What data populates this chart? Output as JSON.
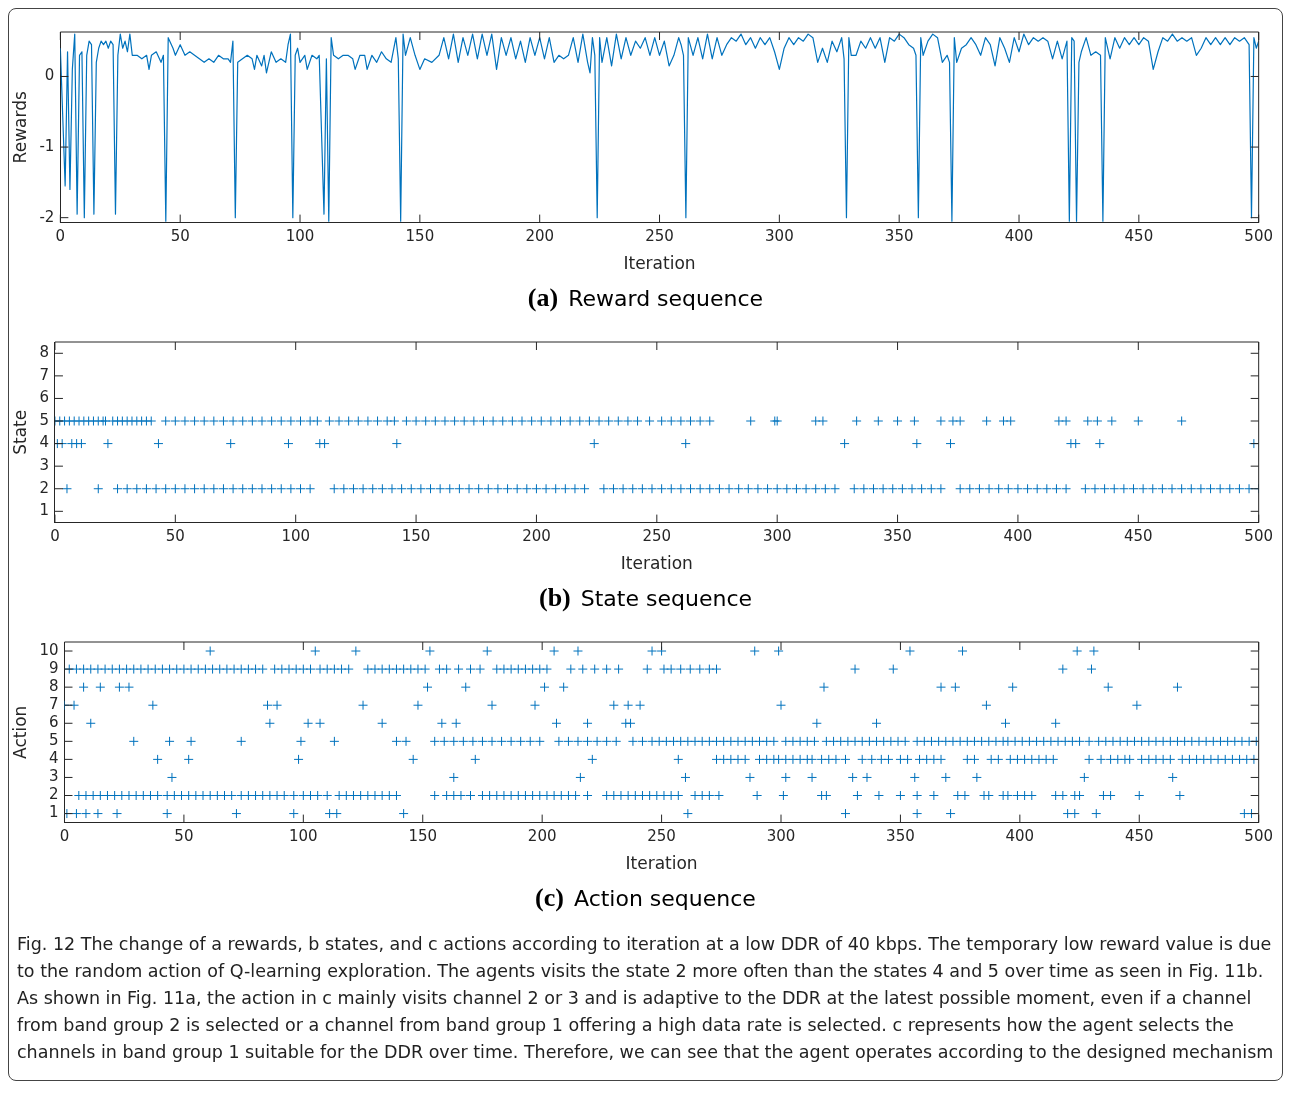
{
  "chart_data": [
    {
      "type": "line",
      "title": "(a) Reward sequence",
      "xlabel": "Iteration",
      "ylabel": "Rewards",
      "xlim": [
        0,
        500
      ],
      "xticks": [
        0,
        50,
        100,
        150,
        200,
        250,
        300,
        350,
        400,
        450,
        500
      ],
      "ylim": [
        -2.07,
        0.63
      ],
      "yticks": [
        -2,
        -1,
        0
      ],
      "grid": false,
      "legend": false,
      "series": [
        {
          "color": "#0072bd",
          "x": [
            0,
            2,
            3,
            4,
            5,
            6,
            7,
            8,
            9,
            10,
            11,
            12,
            13,
            14,
            15,
            16,
            17,
            18,
            19,
            20,
            21,
            22,
            23,
            24,
            25,
            26,
            27,
            28,
            29,
            30,
            32,
            34,
            36,
            37,
            38,
            40,
            42,
            43,
            44,
            45,
            47,
            48,
            50,
            52,
            54,
            56,
            58,
            60,
            62,
            64,
            66,
            68,
            70,
            71,
            72,
            73,
            74,
            76,
            78,
            80,
            81,
            82,
            84,
            85,
            86,
            88,
            90,
            92,
            94,
            95,
            96,
            97,
            98,
            99,
            100,
            102,
            103,
            105,
            107,
            108,
            110,
            111,
            112,
            113,
            114,
            116,
            118,
            120,
            122,
            123,
            125,
            127,
            128,
            130,
            132,
            134,
            136,
            138,
            140,
            141,
            142,
            143,
            144,
            146,
            148,
            150,
            152,
            155,
            158,
            160,
            162,
            164,
            166,
            168,
            170,
            172,
            174,
            176,
            178,
            180,
            182,
            184,
            186,
            188,
            190,
            192,
            194,
            196,
            198,
            200,
            202,
            204,
            206,
            208,
            210,
            212,
            214,
            216,
            218,
            220,
            221,
            222,
            223,
            224,
            225,
            226,
            228,
            230,
            232,
            234,
            236,
            238,
            240,
            242,
            244,
            246,
            248,
            250,
            252,
            254,
            256,
            258,
            259,
            260,
            261,
            262,
            264,
            266,
            268,
            270,
            272,
            274,
            276,
            278,
            280,
            282,
            284,
            286,
            288,
            290,
            292,
            294,
            296,
            298,
            300,
            302,
            304,
            306,
            308,
            310,
            312,
            314,
            316,
            318,
            320,
            322,
            324,
            326,
            327,
            328,
            329,
            330,
            332,
            334,
            336,
            338,
            340,
            342,
            344,
            346,
            348,
            350,
            352,
            354,
            356,
            357,
            358,
            359,
            360,
            362,
            364,
            366,
            368,
            370,
            371,
            372,
            373,
            374,
            376,
            378,
            380,
            382,
            384,
            386,
            388,
            390,
            392,
            394,
            396,
            398,
            400,
            402,
            404,
            406,
            408,
            410,
            412,
            414,
            416,
            418,
            420,
            421,
            422,
            423,
            424,
            425,
            426,
            428,
            430,
            432,
            434,
            435,
            436,
            438,
            440,
            442,
            444,
            446,
            448,
            450,
            452,
            454,
            456,
            458,
            460,
            462,
            464,
            466,
            468,
            470,
            472,
            474,
            476,
            478,
            480,
            482,
            484,
            486,
            488,
            490,
            492,
            494,
            496,
            497,
            498,
            499,
            500
          ],
          "values": [
            0.4,
            -1.55,
            0.35,
            -1.6,
            0.1,
            0.6,
            -1.95,
            0.3,
            0.35,
            -2,
            0.3,
            0.5,
            0.45,
            -1.95,
            0.2,
            0.4,
            0.5,
            0.45,
            0.5,
            0.4,
            0.5,
            0.45,
            -1.95,
            0.3,
            0.6,
            0.4,
            0.5,
            0.35,
            0.6,
            0.3,
            0.3,
            0.25,
            0.3,
            0.1,
            0.3,
            0.35,
            0.2,
            0.3,
            -2.05,
            0.55,
            0.4,
            0.3,
            0.45,
            0.3,
            0.35,
            0.3,
            0.25,
            0.2,
            0.25,
            0.2,
            0.3,
            0.25,
            0.25,
            0.2,
            0.5,
            -2,
            0.2,
            0.25,
            0.3,
            0.25,
            0.1,
            0.3,
            0.15,
            0.3,
            0.05,
            0.35,
            0.2,
            0.25,
            0.2,
            0.45,
            0.6,
            -2,
            0.3,
            0.4,
            0.2,
            0.3,
            0.1,
            0.3,
            0.25,
            0.3,
            -1.95,
            0.25,
            -2.05,
            0.55,
            0.3,
            0.25,
            0.3,
            0.3,
            0.25,
            0.1,
            0.3,
            0.3,
            0.1,
            0.3,
            0.2,
            0.35,
            0.25,
            0.2,
            0.55,
            0.25,
            -2.05,
            0.6,
            0.3,
            0.55,
            0.3,
            0.1,
            0.25,
            0.2,
            0.3,
            0.55,
            0.25,
            0.6,
            0.2,
            0.55,
            0.3,
            0.6,
            0.25,
            0.6,
            0.3,
            0.6,
            0.1,
            0.55,
            0.3,
            0.55,
            0.25,
            0.5,
            0.2,
            0.55,
            0.3,
            0.55,
            0.25,
            0.55,
            0.2,
            0.3,
            0.25,
            0.3,
            0.55,
            0.2,
            0.6,
            0.2,
            0.05,
            0.55,
            0.3,
            -2,
            0.55,
            0.2,
            0.55,
            0.15,
            0.6,
            0.25,
            0.55,
            0.3,
            0.5,
            0.4,
            0.55,
            0.3,
            0.55,
            0.3,
            0.5,
            0.15,
            0.3,
            0.55,
            0.45,
            0.3,
            -2,
            0.55,
            0.3,
            0.55,
            0.25,
            0.6,
            0.25,
            0.55,
            0.3,
            0.45,
            0.55,
            0.5,
            0.6,
            0.45,
            0.55,
            0.4,
            0.55,
            0.45,
            0.55,
            0.35,
            0.1,
            0.4,
            0.55,
            0.45,
            0.55,
            0.5,
            0.6,
            0.55,
            0.2,
            0.4,
            0.2,
            0.5,
            0.35,
            0.55,
            0.25,
            -2,
            0.55,
            0.3,
            0.3,
            0.5,
            0.4,
            0.55,
            0.4,
            0.55,
            0.2,
            0.55,
            0.5,
            0.6,
            0.55,
            0.45,
            0.4,
            0.3,
            -2,
            0.55,
            0.3,
            0.5,
            0.6,
            0.55,
            0.2,
            0.3,
            0.2,
            -2.05,
            0.55,
            0.2,
            0.4,
            0.45,
            0.55,
            0.45,
            0.3,
            0.55,
            0.45,
            0.15,
            0.55,
            0.4,
            0.2,
            0.55,
            0.35,
            0.6,
            0.45,
            0.55,
            0.5,
            0.55,
            0.5,
            0.25,
            0.5,
            0.25,
            0.5,
            -2.05,
            0.55,
            0.5,
            -2.05,
            0.2,
            0.35,
            0.55,
            0.3,
            0.35,
            0.3,
            -2.05,
            0.55,
            0.25,
            0.55,
            0.4,
            0.55,
            0.45,
            0.55,
            0.45,
            0.55,
            0.5,
            0.1,
            0.35,
            0.55,
            0.5,
            0.6,
            0.5,
            0.55,
            0.5,
            0.55,
            0.3,
            0.4,
            0.55,
            0.45,
            0.55,
            0.45,
            0.55,
            0.45,
            0.55,
            0.5,
            0.55,
            0.45,
            -2,
            0.55,
            0.4,
            0.5
          ]
        }
      ]
    },
    {
      "type": "scatter",
      "title": "(b) State sequence",
      "xlabel": "Iteration",
      "ylabel": "State",
      "xlim": [
        0,
        500
      ],
      "xticks": [
        0,
        50,
        100,
        150,
        200,
        250,
        300,
        350,
        400,
        450,
        500
      ],
      "ylim": [
        0.5,
        8.5
      ],
      "yticks": [
        1,
        2,
        3,
        4,
        5,
        6,
        7,
        8
      ],
      "grid": false,
      "legend": false,
      "marker": "cross",
      "series": [
        {
          "color": "#0072bd",
          "x": [
            1,
            3,
            7,
            9,
            11,
            22,
            43,
            73,
            97,
            110,
            112,
            142,
            224,
            262,
            328,
            358,
            372,
            422,
            424,
            434,
            498
          ],
          "values": [
            4,
            4,
            4,
            4,
            4,
            4,
            4,
            4,
            4,
            4,
            4,
            4,
            4,
            4,
            4,
            4,
            4,
            4,
            4,
            4,
            4
          ]
        },
        {
          "color": "#0072bd",
          "x": [
            0,
            2,
            4,
            6,
            8,
            10,
            12,
            14,
            16,
            18,
            20,
            21,
            24,
            26,
            28,
            30,
            32,
            34,
            36,
            38,
            40,
            46,
            50,
            54,
            58,
            62,
            66,
            70,
            74,
            78,
            82,
            86,
            90,
            94,
            98,
            102,
            106,
            109,
            114,
            118,
            122,
            126,
            130,
            134,
            138,
            141,
            146,
            150,
            154,
            158,
            162,
            166,
            170,
            174,
            178,
            182,
            186,
            190,
            194,
            198,
            202,
            206,
            210,
            214,
            218,
            222,
            226,
            230,
            234,
            238,
            242,
            247,
            252,
            256,
            260,
            264,
            268,
            272,
            289,
            299,
            300,
            316,
            319,
            333,
            342,
            350,
            357,
            368,
            373,
            376,
            387,
            394,
            397,
            417,
            420,
            429,
            433,
            439,
            450,
            468
          ],
          "values": [
            5,
            5,
            5,
            5,
            5,
            5,
            5,
            5,
            5,
            5,
            5,
            5,
            5,
            5,
            5,
            5,
            5,
            5,
            5,
            5,
            5,
            5,
            5,
            5,
            5,
            5,
            5,
            5,
            5,
            5,
            5,
            5,
            5,
            5,
            5,
            5,
            5,
            5,
            5,
            5,
            5,
            5,
            5,
            5,
            5,
            5,
            5,
            5,
            5,
            5,
            5,
            5,
            5,
            5,
            5,
            5,
            5,
            5,
            5,
            5,
            5,
            5,
            5,
            5,
            5,
            5,
            5,
            5,
            5,
            5,
            5,
            5,
            5,
            5,
            5,
            5,
            5,
            5,
            5,
            5,
            5,
            5,
            5,
            5,
            5,
            5,
            5,
            5,
            5,
            5,
            5,
            5,
            5,
            5,
            5,
            5,
            5,
            5,
            5,
            5
          ]
        },
        {
          "color": "#0072bd",
          "x": [
            5,
            18,
            26,
            30,
            34,
            38,
            42,
            46,
            50,
            54,
            58,
            62,
            66,
            70,
            74,
            78,
            82,
            86,
            90,
            94,
            98,
            102,
            106,
            116,
            120,
            124,
            128,
            132,
            136,
            140,
            144,
            148,
            152,
            156,
            160,
            164,
            168,
            172,
            176,
            180,
            184,
            188,
            192,
            196,
            200,
            204,
            208,
            212,
            216,
            220,
            228,
            232,
            236,
            240,
            244,
            248,
            252,
            256,
            260,
            264,
            268,
            272,
            276,
            280,
            284,
            288,
            292,
            296,
            300,
            304,
            308,
            312,
            316,
            320,
            324,
            332,
            336,
            340,
            344,
            348,
            352,
            356,
            360,
            364,
            368,
            376,
            380,
            384,
            388,
            392,
            396,
            400,
            404,
            408,
            412,
            416,
            420,
            428,
            432,
            436,
            440,
            444,
            448,
            452,
            456,
            460,
            464,
            468,
            472,
            476,
            480,
            484,
            488,
            492,
            496,
            500
          ],
          "values": [
            2,
            2,
            2,
            2,
            2,
            2,
            2,
            2,
            2,
            2,
            2,
            2,
            2,
            2,
            2,
            2,
            2,
            2,
            2,
            2,
            2,
            2,
            2,
            2,
            2,
            2,
            2,
            2,
            2,
            2,
            2,
            2,
            2,
            2,
            2,
            2,
            2,
            2,
            2,
            2,
            2,
            2,
            2,
            2,
            2,
            2,
            2,
            2,
            2,
            2,
            2,
            2,
            2,
            2,
            2,
            2,
            2,
            2,
            2,
            2,
            2,
            2,
            2,
            2,
            2,
            2,
            2,
            2,
            2,
            2,
            2,
            2,
            2,
            2,
            2,
            2,
            2,
            2,
            2,
            2,
            2,
            2,
            2,
            2,
            2,
            2,
            2,
            2,
            2,
            2,
            2,
            2,
            2,
            2,
            2,
            2,
            2,
            2,
            2,
            2,
            2,
            2,
            2,
            2,
            2,
            2,
            2,
            2,
            2,
            2,
            2,
            2,
            2,
            2,
            2,
            2
          ]
        }
      ]
    },
    {
      "type": "scatter",
      "title": "(c) Action sequence",
      "xlabel": "Iteration",
      "ylabel": "Action",
      "xlim": [
        0,
        500
      ],
      "xticks": [
        0,
        50,
        100,
        150,
        200,
        250,
        300,
        350,
        400,
        450,
        500
      ],
      "ylim": [
        0.5,
        10.5
      ],
      "yticks": [
        1,
        2,
        3,
        4,
        5,
        6,
        7,
        8,
        9,
        10
      ],
      "grid": false,
      "legend": false,
      "marker": "cross",
      "annotations": [
        "Fig. 12 The change of a rewards, b states, and c actions according to iteration at a low DDR of 40 kbps. The temporary low reward value is due to the random action of Q-learning exploration. The agents visits the state 2 more often than the states 4 and 5 over time as seen in Fig. 11b. As shown in Fig. 11a, the action in c mainly visits channel 2 or 3 and is adaptive to the DDR at the latest possible moment, even if a channel from band group 2 is selected or a channel from band group 1 offering a high data rate is selected. c represents how the agent selects the channels in band group 1 suitable for the DDR over time. Therefore, we can see that the agent operates according to the designed mechanism"
      ],
      "series": [
        {
          "color": "#0072bd",
          "x": [
            61,
            105,
            122,
            153,
            177,
            205,
            215,
            246,
            250,
            289,
            299,
            354,
            376,
            424,
            431
          ],
          "values": [
            10,
            10,
            10,
            10,
            10,
            10,
            10,
            10,
            10,
            10,
            10,
            10,
            10,
            10,
            10
          ]
        },
        {
          "color": "#0072bd",
          "x": [
            2,
            5,
            8,
            11,
            14,
            17,
            20,
            23,
            26,
            29,
            32,
            35,
            38,
            41,
            44,
            47,
            50,
            53,
            56,
            59,
            62,
            65,
            68,
            71,
            74,
            77,
            80,
            83,
            88,
            91,
            94,
            97,
            100,
            103,
            107,
            110,
            113,
            116,
            119,
            127,
            130,
            133,
            136,
            139,
            142,
            145,
            148,
            151,
            157,
            160,
            165,
            170,
            174,
            181,
            184,
            187,
            190,
            193,
            196,
            199,
            202,
            212,
            217,
            222,
            227,
            232,
            244,
            251,
            254,
            258,
            262,
            266,
            270,
            273,
            331,
            347,
            418,
            430
          ],
          "values": [
            9,
            9,
            9,
            9,
            9,
            9,
            9,
            9,
            9,
            9,
            9,
            9,
            9,
            9,
            9,
            9,
            9,
            9,
            9,
            9,
            9,
            9,
            9,
            9,
            9,
            9,
            9,
            9,
            9,
            9,
            9,
            9,
            9,
            9,
            9,
            9,
            9,
            9,
            9,
            9,
            9,
            9,
            9,
            9,
            9,
            9,
            9,
            9,
            9,
            9,
            9,
            9,
            9,
            9,
            9,
            9,
            9,
            9,
            9,
            9,
            9,
            9,
            9,
            9,
            9,
            9,
            9,
            9,
            9,
            9,
            9,
            9,
            9,
            9,
            9,
            9,
            9,
            9
          ]
        },
        {
          "color": "#0072bd",
          "x": [
            8,
            15,
            23,
            27,
            152,
            168,
            201,
            209,
            318,
            367,
            373,
            397,
            437,
            466
          ],
          "values": [
            8,
            8,
            8,
            8,
            8,
            8,
            8,
            8,
            8,
            8,
            8,
            8,
            8,
            8
          ]
        },
        {
          "color": "#0072bd",
          "x": [
            0,
            4,
            37,
            85,
            89,
            125,
            148,
            179,
            197,
            230,
            236,
            241,
            300,
            386,
            449
          ],
          "values": [
            7,
            7,
            7,
            7,
            7,
            7,
            7,
            7,
            7,
            7,
            7,
            7,
            7,
            7,
            7
          ]
        },
        {
          "color": "#0072bd",
          "x": [
            11,
            86,
            102,
            107,
            133,
            158,
            164,
            206,
            219,
            235,
            237,
            315,
            340,
            394,
            415
          ],
          "values": [
            6,
            6,
            6,
            6,
            6,
            6,
            6,
            6,
            6,
            6,
            6,
            6,
            6,
            6,
            6
          ]
        },
        {
          "color": "#0072bd",
          "x": [
            29,
            44,
            53,
            74,
            99,
            113,
            139,
            143,
            155,
            159,
            163,
            167,
            171,
            175,
            179,
            183,
            187,
            191,
            195,
            199,
            207,
            211,
            215,
            219,
            223,
            227,
            231,
            238,
            242,
            246,
            249,
            252,
            255,
            258,
            261,
            264,
            267,
            270,
            273,
            276,
            279,
            282,
            285,
            288,
            291,
            294,
            297,
            302,
            305,
            308,
            311,
            314,
            319,
            322,
            325,
            328,
            331,
            334,
            337,
            340,
            343,
            346,
            349,
            352,
            357,
            360,
            363,
            366,
            369,
            372,
            375,
            378,
            381,
            384,
            387,
            390,
            393,
            395,
            398,
            401,
            404,
            407,
            410,
            413,
            416,
            419,
            422,
            425,
            429,
            433,
            436,
            439,
            442,
            445,
            448,
            451,
            454,
            457,
            460,
            463,
            466,
            469,
            472,
            475,
            478,
            481,
            484,
            487,
            490,
            493,
            496,
            499
          ],
          "values": [
            5,
            5,
            5,
            5,
            5,
            5,
            5,
            5,
            5,
            5,
            5,
            5,
            5,
            5,
            5,
            5,
            5,
            5,
            5,
            5,
            5,
            5,
            5,
            5,
            5,
            5,
            5,
            5,
            5,
            5,
            5,
            5,
            5,
            5,
            5,
            5,
            5,
            5,
            5,
            5,
            5,
            5,
            5,
            5,
            5,
            5,
            5,
            5,
            5,
            5,
            5,
            5,
            5,
            5,
            5,
            5,
            5,
            5,
            5,
            5,
            5,
            5,
            5,
            5,
            5,
            5,
            5,
            5,
            5,
            5,
            5,
            5,
            5,
            5,
            5,
            5,
            5,
            5,
            5,
            5,
            5,
            5,
            5,
            5,
            5,
            5,
            5,
            5,
            5,
            5,
            5,
            5,
            5,
            5,
            5,
            5,
            5,
            5,
            5,
            5,
            5,
            5,
            5,
            5,
            5,
            5,
            5,
            5,
            5,
            5,
            5,
            5
          ]
        },
        {
          "color": "#0072bd",
          "x": [
            39,
            52,
            98,
            146,
            172,
            221,
            257,
            273,
            276,
            279,
            282,
            285,
            291,
            294,
            297,
            299,
            302,
            305,
            308,
            311,
            313,
            317,
            320,
            323,
            327,
            334,
            338,
            342,
            345,
            350,
            353,
            358,
            361,
            364,
            367,
            378,
            381,
            388,
            391,
            396,
            399,
            402,
            405,
            408,
            411,
            414,
            429,
            434,
            438,
            441,
            444,
            446,
            451,
            454,
            457,
            460,
            463,
            468,
            471,
            474,
            477,
            480,
            483,
            486,
            489,
            492,
            495,
            498
          ],
          "values": [
            4,
            4,
            4,
            4,
            4,
            4,
            4,
            4,
            4,
            4,
            4,
            4,
            4,
            4,
            4,
            4,
            4,
            4,
            4,
            4,
            4,
            4,
            4,
            4,
            4,
            4,
            4,
            4,
            4,
            4,
            4,
            4,
            4,
            4,
            4,
            4,
            4,
            4,
            4,
            4,
            4,
            4,
            4,
            4,
            4,
            4,
            4,
            4,
            4,
            4,
            4,
            4,
            4,
            4,
            4,
            4,
            4,
            4,
            4,
            4,
            4,
            4,
            4,
            4,
            4,
            4,
            4,
            4
          ]
        },
        {
          "color": "#0072bd",
          "x": [
            45,
            163,
            216,
            260,
            287,
            302,
            313,
            330,
            336,
            356,
            369,
            382,
            427,
            464
          ],
          "values": [
            3,
            3,
            3,
            3,
            3,
            3,
            3,
            3,
            3,
            3,
            3,
            3,
            3,
            3
          ]
        },
        {
          "color": "#0072bd",
          "x": [
            6,
            9,
            12,
            15,
            18,
            21,
            24,
            27,
            30,
            33,
            36,
            39,
            43,
            46,
            49,
            52,
            55,
            58,
            61,
            64,
            67,
            70,
            74,
            77,
            80,
            83,
            86,
            89,
            92,
            96,
            100,
            103,
            106,
            110,
            115,
            118,
            121,
            124,
            127,
            130,
            133,
            136,
            139,
            155,
            160,
            163,
            166,
            170,
            175,
            178,
            181,
            184,
            187,
            190,
            193,
            196,
            199,
            202,
            205,
            208,
            211,
            214,
            219,
            227,
            230,
            233,
            236,
            239,
            242,
            245,
            248,
            251,
            254,
            257,
            264,
            267,
            270,
            274,
            290,
            301,
            317,
            319,
            332,
            341,
            350,
            357,
            364,
            374,
            377,
            385,
            387,
            393,
            395,
            399,
            402,
            405,
            415,
            418,
            423,
            425,
            435,
            438,
            450,
            467
          ],
          "values": [
            2,
            2,
            2,
            2,
            2,
            2,
            2,
            2,
            2,
            2,
            2,
            2,
            2,
            2,
            2,
            2,
            2,
            2,
            2,
            2,
            2,
            2,
            2,
            2,
            2,
            2,
            2,
            2,
            2,
            2,
            2,
            2,
            2,
            2,
            2,
            2,
            2,
            2,
            2,
            2,
            2,
            2,
            2,
            2,
            2,
            2,
            2,
            2,
            2,
            2,
            2,
            2,
            2,
            2,
            2,
            2,
            2,
            2,
            2,
            2,
            2,
            2,
            2,
            2,
            2,
            2,
            2,
            2,
            2,
            2,
            2,
            2,
            2,
            2,
            2,
            2,
            2,
            2,
            2,
            2,
            2,
            2,
            2,
            2,
            2,
            2,
            2,
            2,
            2,
            2,
            2,
            2,
            2,
            2,
            2,
            2,
            2,
            2,
            2,
            2,
            2,
            2,
            2,
            2
          ]
        },
        {
          "color": "#0072bd",
          "x": [
            1,
            5,
            9,
            14,
            22,
            43,
            72,
            96,
            111,
            114,
            142,
            261,
            327,
            357,
            371,
            420,
            423,
            432,
            494,
            497
          ],
          "values": [
            1,
            1,
            1,
            1,
            1,
            1,
            1,
            1,
            1,
            1,
            1,
            1,
            1,
            1,
            1,
            1,
            1,
            1,
            1,
            1
          ]
        }
      ]
    }
  ]
}
